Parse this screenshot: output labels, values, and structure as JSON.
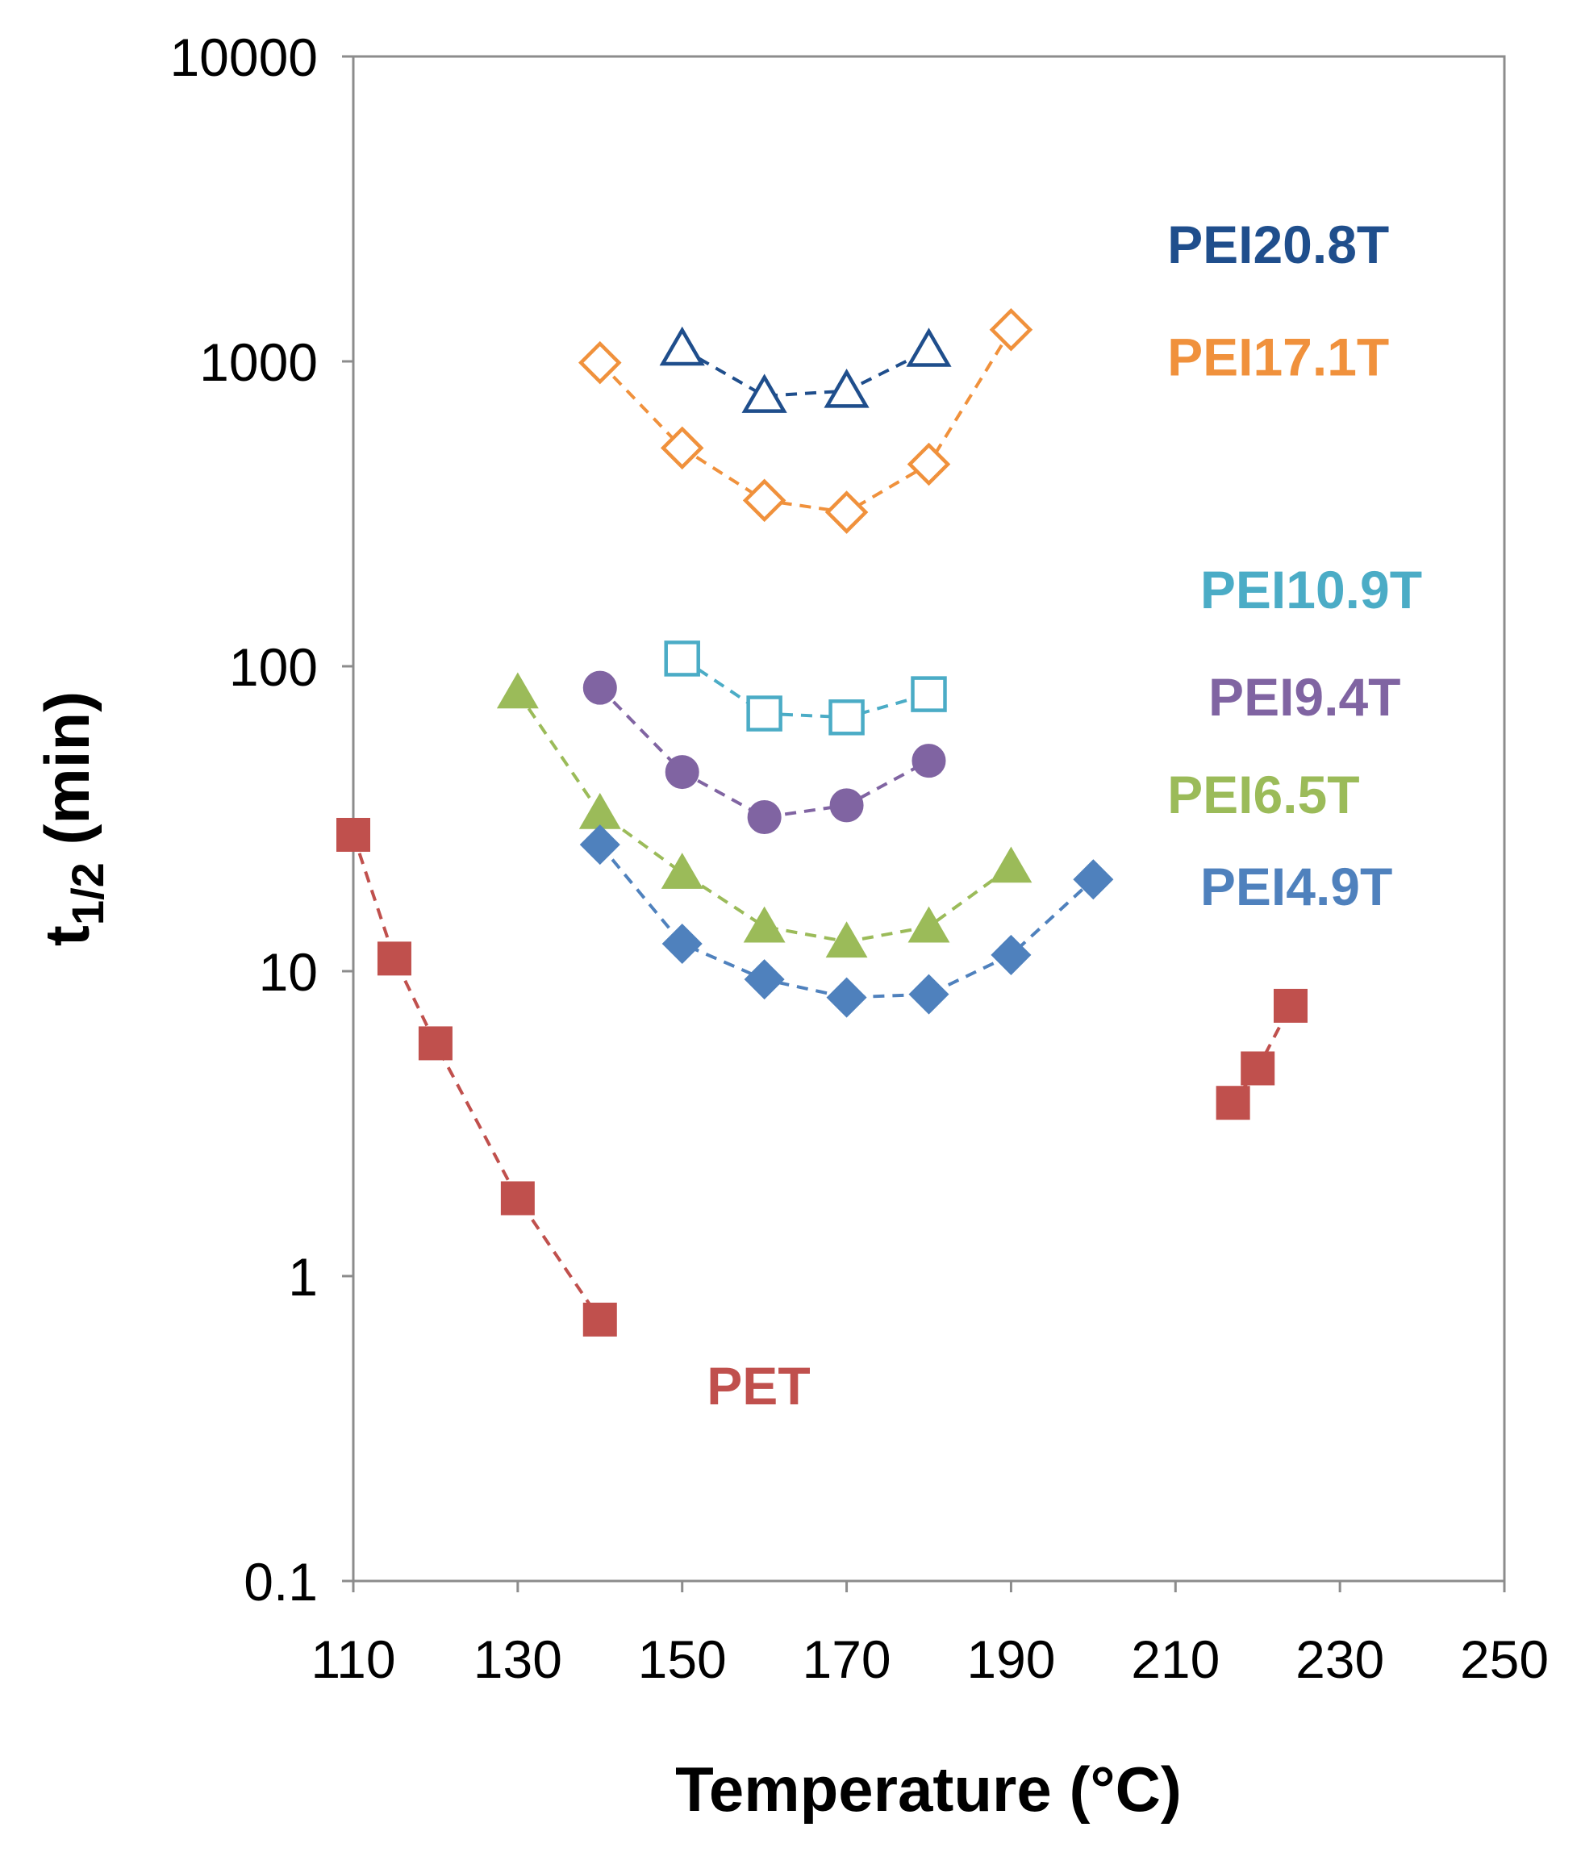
{
  "chart_data": {
    "type": "scatter",
    "title": "",
    "xlabel": "Temperature (°C)",
    "ylabel_main": "t",
    "ylabel_sub": "1/2",
    "ylabel_suffix": " (min)",
    "xlim": [
      110,
      250
    ],
    "ylim": [
      0.1,
      10000
    ],
    "yscale": "log",
    "grid": false,
    "x_ticks": [
      110,
      130,
      150,
      170,
      190,
      210,
      230,
      250
    ],
    "y_ticks": [
      {
        "value": 0.1,
        "label": "0.1"
      },
      {
        "value": 1,
        "label": "1"
      },
      {
        "value": 10,
        "label": "10"
      },
      {
        "value": 100,
        "label": "100"
      },
      {
        "value": 1000,
        "label": "1000"
      },
      {
        "value": 10000,
        "label": "10000"
      }
    ],
    "series": [
      {
        "name": "PEI20.8T",
        "color": "#1f4e8c",
        "marker": "triangle",
        "filled": false,
        "label_pos": {
          "x": 209,
          "y": 2100
        },
        "segments": [
          [
            {
              "x": 150,
              "y": 1100
            },
            {
              "x": 160,
              "y": 770
            },
            {
              "x": 170,
              "y": 800
            },
            {
              "x": 180,
              "y": 1090
            }
          ]
        ]
      },
      {
        "name": "PEI17.1T",
        "color": "#f0913c",
        "marker": "diamond",
        "filled": false,
        "label_pos": {
          "x": 209,
          "y": 900
        },
        "segments": [
          [
            {
              "x": 140,
              "y": 990
            },
            {
              "x": 150,
              "y": 520
            },
            {
              "x": 160,
              "y": 350
            },
            {
              "x": 170,
              "y": 320
            },
            {
              "x": 180,
              "y": 460
            },
            {
              "x": 190,
              "y": 1270
            }
          ]
        ]
      },
      {
        "name": "PEI10.9T",
        "color": "#4bacc6",
        "marker": "square",
        "filled": false,
        "label_pos": {
          "x": 213,
          "y": 155
        },
        "segments": [
          [
            {
              "x": 150,
              "y": 106
            },
            {
              "x": 160,
              "y": 70
            },
            {
              "x": 170,
              "y": 68
            },
            {
              "x": 180,
              "y": 81
            }
          ]
        ]
      },
      {
        "name": "PEI9.4T",
        "color": "#8064a2",
        "marker": "circle",
        "filled": true,
        "label_pos": {
          "x": 214,
          "y": 69
        },
        "segments": [
          [
            {
              "x": 140,
              "y": 85
            },
            {
              "x": 150,
              "y": 45
            },
            {
              "x": 160,
              "y": 32
            },
            {
              "x": 170,
              "y": 35
            },
            {
              "x": 180,
              "y": 49
            }
          ]
        ]
      },
      {
        "name": "PEI6.5T",
        "color": "#9bbb59",
        "marker": "triangle",
        "filled": true,
        "label_pos": {
          "x": 209,
          "y": 33
        },
        "segments": [
          [
            {
              "x": 130,
              "y": 82
            },
            {
              "x": 140,
              "y": 33
            },
            {
              "x": 150,
              "y": 21
            },
            {
              "x": 160,
              "y": 14
            },
            {
              "x": 170,
              "y": 12.5
            },
            {
              "x": 180,
              "y": 14
            },
            {
              "x": 190,
              "y": 22
            }
          ]
        ]
      },
      {
        "name": "PEI4.9T",
        "color": "#4f81bd",
        "marker": "diamond",
        "filled": true,
        "label_pos": {
          "x": 213,
          "y": 16.5
        },
        "segments": [
          [
            {
              "x": 140,
              "y": 26
            },
            {
              "x": 150,
              "y": 12.3
            },
            {
              "x": 160,
              "y": 9.4
            },
            {
              "x": 170,
              "y": 8.2
            },
            {
              "x": 180,
              "y": 8.4
            },
            {
              "x": 190,
              "y": 11.3
            },
            {
              "x": 200,
              "y": 20
            }
          ]
        ]
      },
      {
        "name": "PET",
        "color": "#c0504d",
        "marker": "square",
        "filled": true,
        "label_pos": {
          "x": 153,
          "y": 0.38
        },
        "segments": [
          [
            {
              "x": 110,
              "y": 28
            },
            {
              "x": 115,
              "y": 11
            },
            {
              "x": 120,
              "y": 5.8
            },
            {
              "x": 130,
              "y": 1.8
            },
            {
              "x": 140,
              "y": 0.72
            }
          ],
          [
            {
              "x": 217,
              "y": 3.7
            },
            {
              "x": 220,
              "y": 4.8
            },
            {
              "x": 224,
              "y": 7.7
            }
          ]
        ]
      }
    ]
  }
}
